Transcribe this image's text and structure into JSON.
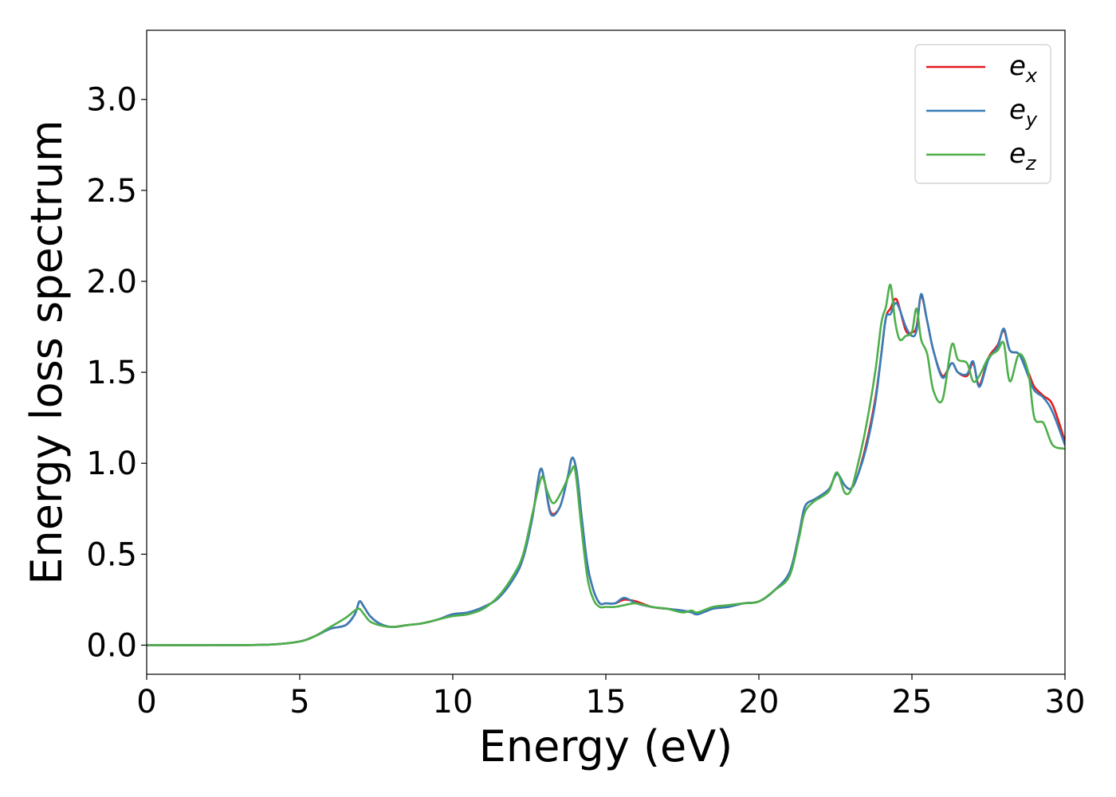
{
  "chart_data": {
    "type": "line",
    "xlabel": "Energy (eV)",
    "ylabel": "Energy loss spectrum",
    "xlim": [
      0,
      30
    ],
    "ylim": [
      -0.16,
      3.38
    ],
    "xticks": [
      0,
      5,
      10,
      15,
      20,
      25,
      30
    ],
    "xtick_labels": [
      "0",
      "5",
      "10",
      "15",
      "20",
      "25",
      "30"
    ],
    "yticks": [
      0.0,
      0.5,
      1.0,
      1.5,
      2.0,
      2.5,
      3.0
    ],
    "ytick_labels": [
      "0.0",
      "0.5",
      "1.0",
      "1.5",
      "2.0",
      "2.5",
      "3.0"
    ],
    "grid": false,
    "legend_position": "top-right",
    "series": [
      {
        "name": "e",
        "sub": "x",
        "color": "#e41a1c",
        "x": [
          0,
          2,
          4,
          5,
          5.5,
          6,
          6.5,
          6.8,
          6.95,
          7.1,
          7.3,
          7.6,
          8,
          8.5,
          9,
          9.5,
          10,
          10.5,
          11,
          11.5,
          12,
          12.3,
          12.6,
          12.85,
          13,
          13.2,
          13.5,
          13.75,
          13.9,
          14.05,
          14.2,
          14.4,
          14.6,
          14.8,
          15,
          15.3,
          15.6,
          16,
          16.5,
          17,
          17.5,
          17.8,
          18,
          18.5,
          19,
          19.5,
          20,
          20.5,
          21,
          21.3,
          21.5,
          21.8,
          22,
          22.3,
          22.55,
          22.8,
          23,
          23.2,
          23.5,
          23.8,
          24.0,
          24.15,
          24.3,
          24.5,
          24.8,
          25.0,
          25.15,
          25.3,
          25.5,
          25.7,
          26,
          26.3,
          26.5,
          26.8,
          27.0,
          27.2,
          27.5,
          27.8,
          28.0,
          28.2,
          28.5,
          28.8,
          29,
          29.3,
          29.6,
          30
        ],
        "y": [
          0,
          0,
          0.003,
          0.02,
          0.05,
          0.09,
          0.11,
          0.17,
          0.24,
          0.21,
          0.16,
          0.12,
          0.1,
          0.11,
          0.12,
          0.14,
          0.17,
          0.18,
          0.21,
          0.26,
          0.37,
          0.48,
          0.7,
          0.96,
          0.9,
          0.73,
          0.76,
          0.92,
          1.03,
          0.95,
          0.72,
          0.44,
          0.3,
          0.23,
          0.23,
          0.23,
          0.25,
          0.24,
          0.21,
          0.2,
          0.19,
          0.18,
          0.17,
          0.2,
          0.21,
          0.23,
          0.24,
          0.3,
          0.4,
          0.6,
          0.76,
          0.8,
          0.82,
          0.86,
          0.94,
          0.88,
          0.86,
          0.92,
          1.1,
          1.35,
          1.6,
          1.8,
          1.85,
          1.9,
          1.73,
          1.72,
          1.75,
          1.92,
          1.78,
          1.62,
          1.48,
          1.55,
          1.5,
          1.48,
          1.55,
          1.43,
          1.58,
          1.65,
          1.73,
          1.62,
          1.6,
          1.5,
          1.42,
          1.37,
          1.32,
          1.12
        ]
      },
      {
        "name": "e",
        "sub": "y",
        "color": "#377eb8",
        "x": [
          0,
          2,
          4,
          5,
          5.5,
          6,
          6.5,
          6.8,
          6.95,
          7.1,
          7.3,
          7.6,
          8,
          8.5,
          9,
          9.5,
          10,
          10.5,
          11,
          11.5,
          12,
          12.3,
          12.6,
          12.85,
          13,
          13.2,
          13.5,
          13.75,
          13.9,
          14.05,
          14.2,
          14.4,
          14.6,
          14.8,
          15,
          15.3,
          15.6,
          16,
          16.5,
          17,
          17.5,
          17.8,
          18,
          18.5,
          19,
          19.5,
          20,
          20.5,
          21,
          21.3,
          21.5,
          21.8,
          22,
          22.3,
          22.55,
          22.8,
          23,
          23.2,
          23.5,
          23.8,
          24.0,
          24.15,
          24.3,
          24.5,
          24.8,
          25.0,
          25.15,
          25.3,
          25.5,
          25.7,
          26,
          26.3,
          26.5,
          26.8,
          27.0,
          27.2,
          27.5,
          27.8,
          28.0,
          28.2,
          28.5,
          28.8,
          29,
          29.3,
          29.6,
          30
        ],
        "y": [
          0,
          0,
          0.003,
          0.02,
          0.05,
          0.09,
          0.11,
          0.17,
          0.24,
          0.21,
          0.16,
          0.12,
          0.1,
          0.11,
          0.12,
          0.14,
          0.17,
          0.18,
          0.21,
          0.26,
          0.37,
          0.48,
          0.7,
          0.96,
          0.9,
          0.72,
          0.76,
          0.92,
          1.03,
          0.95,
          0.72,
          0.44,
          0.3,
          0.23,
          0.23,
          0.23,
          0.26,
          0.23,
          0.21,
          0.2,
          0.19,
          0.18,
          0.17,
          0.2,
          0.21,
          0.23,
          0.24,
          0.3,
          0.4,
          0.6,
          0.76,
          0.8,
          0.82,
          0.86,
          0.94,
          0.88,
          0.86,
          0.92,
          1.08,
          1.33,
          1.6,
          1.8,
          1.82,
          1.88,
          1.75,
          1.7,
          1.73,
          1.93,
          1.78,
          1.62,
          1.47,
          1.55,
          1.5,
          1.49,
          1.56,
          1.42,
          1.57,
          1.64,
          1.74,
          1.62,
          1.6,
          1.48,
          1.4,
          1.36,
          1.28,
          1.1
        ]
      },
      {
        "name": "e",
        "sub": "z",
        "color": "#4daf4a",
        "x": [
          0,
          2,
          4,
          5,
          5.5,
          6,
          6.5,
          6.8,
          6.95,
          7.1,
          7.3,
          7.6,
          8,
          8.5,
          9,
          9.5,
          10,
          10.5,
          11,
          11.5,
          12,
          12.3,
          12.6,
          12.85,
          12.95,
          13.1,
          13.3,
          13.6,
          13.85,
          14.0,
          14.2,
          14.4,
          14.6,
          14.8,
          15,
          15.3,
          15.6,
          16,
          16.5,
          17,
          17.5,
          17.8,
          18,
          18.5,
          19,
          19.5,
          20,
          20.5,
          21,
          21.3,
          21.5,
          21.8,
          22,
          22.3,
          22.55,
          22.8,
          23,
          23.2,
          23.5,
          23.8,
          24.0,
          24.15,
          24.3,
          24.45,
          24.6,
          24.8,
          25.0,
          25.15,
          25.3,
          25.5,
          25.7,
          26,
          26.3,
          26.5,
          26.8,
          27.0,
          27.2,
          27.5,
          27.8,
          28.0,
          28.2,
          28.5,
          28.8,
          29,
          29.3,
          29.6,
          30
        ],
        "y": [
          0,
          0,
          0.003,
          0.02,
          0.05,
          0.1,
          0.15,
          0.19,
          0.2,
          0.17,
          0.13,
          0.11,
          0.1,
          0.11,
          0.12,
          0.14,
          0.16,
          0.17,
          0.2,
          0.27,
          0.39,
          0.5,
          0.72,
          0.9,
          0.92,
          0.84,
          0.78,
          0.86,
          0.95,
          0.96,
          0.65,
          0.37,
          0.25,
          0.21,
          0.21,
          0.21,
          0.22,
          0.23,
          0.21,
          0.2,
          0.18,
          0.19,
          0.18,
          0.21,
          0.22,
          0.23,
          0.24,
          0.3,
          0.38,
          0.58,
          0.73,
          0.79,
          0.81,
          0.85,
          0.95,
          0.84,
          0.85,
          0.97,
          1.2,
          1.5,
          1.77,
          1.86,
          1.98,
          1.78,
          1.68,
          1.7,
          1.72,
          1.85,
          1.68,
          1.6,
          1.4,
          1.35,
          1.65,
          1.57,
          1.55,
          1.45,
          1.48,
          1.58,
          1.62,
          1.66,
          1.45,
          1.6,
          1.5,
          1.25,
          1.22,
          1.1,
          1.08
        ]
      }
    ]
  }
}
